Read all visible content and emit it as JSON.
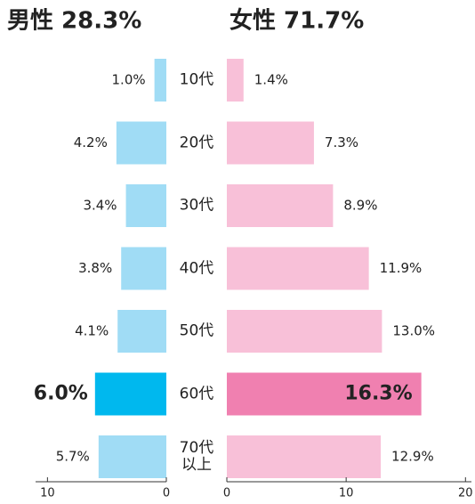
{
  "chart_data": {
    "type": "butterfly",
    "categories": [
      "10代",
      "20代",
      "30代",
      "40代",
      "50代",
      "60代",
      "70代\n以上"
    ],
    "highlight_category": "60代",
    "series": [
      {
        "name": "男性 28.3%",
        "color": "#a0dcf5",
        "highlight_color": "#00b8ee",
        "values": [
          1.0,
          4.2,
          3.4,
          3.8,
          4.1,
          6.0,
          5.7
        ],
        "value_labels": [
          "1.0%",
          "4.2%",
          "3.4%",
          "3.8%",
          "4.1%",
          "6.0%",
          "5.7%"
        ],
        "xlim": [
          0,
          11
        ],
        "xticks": [
          10,
          0
        ]
      },
      {
        "name": "女性 71.7%",
        "color": "#f8c0d8",
        "highlight_color": "#f080b0",
        "values": [
          1.4,
          7.3,
          8.9,
          11.9,
          13.0,
          16.3,
          12.9
        ],
        "value_labels": [
          "1.4%",
          "7.3%",
          "8.9%",
          "11.9%",
          "13.0%",
          "16.3%",
          "12.9%"
        ],
        "xlim": [
          0,
          20.5
        ],
        "xticks": [
          0,
          10,
          20
        ]
      }
    ]
  }
}
